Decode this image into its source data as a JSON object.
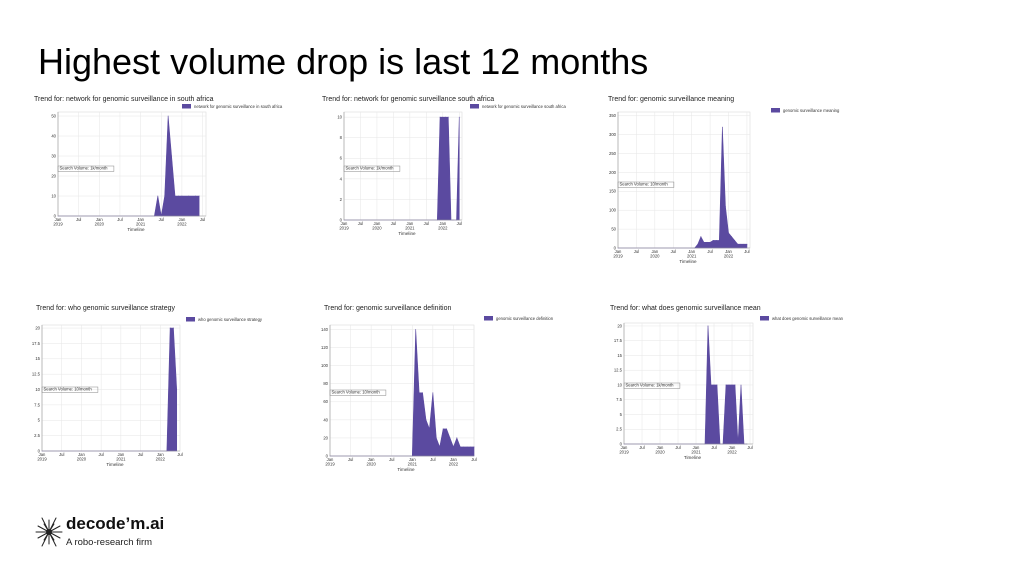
{
  "slide": {
    "title": "Highest volume drop is last 12 months"
  },
  "logo": {
    "name": "decode’m.ai",
    "tagline": "A robo-research firm"
  },
  "colors": {
    "area": "#5b4aa0",
    "grid": "#e6e6e6",
    "axis": "#999999"
  },
  "chart_data": [
    {
      "type": "area",
      "title": "Trend for: network for genomic surveillance in south africa",
      "legend": "network for genomic surveillance in south africa",
      "annotation": "Search Volume: 1k/month",
      "xlabel": "Timeline",
      "x_ticks": [
        {
          "t": 0,
          "label": "Jan\n2019"
        },
        {
          "t": 6,
          "label": "Jul"
        },
        {
          "t": 12,
          "label": "Jan\n2020"
        },
        {
          "t": 18,
          "label": "Jul"
        },
        {
          "t": 24,
          "label": "Jan\n2021"
        },
        {
          "t": 30,
          "label": "Jul"
        },
        {
          "t": 36,
          "label": "Jan\n2022"
        },
        {
          "t": 42,
          "label": "Jul"
        }
      ],
      "y_ticks": [
        0,
        10,
        20,
        30,
        40,
        50
      ],
      "ylim": [
        0,
        52
      ],
      "xlim": [
        0,
        43
      ],
      "x": [
        0,
        28,
        29,
        30,
        31,
        32,
        33,
        34,
        35,
        36,
        38,
        40,
        41
      ],
      "values": [
        0,
        0,
        10,
        0,
        10,
        50,
        30,
        10,
        10,
        10,
        10,
        10,
        10
      ]
    },
    {
      "type": "area",
      "title": "Trend for: network for genomic surveillance south africa",
      "legend": "network for genomic surveillance south africa",
      "annotation": "Search Volume: 1k/month",
      "xlabel": "Timeline",
      "x_ticks": [
        {
          "t": 0,
          "label": "Jan\n2019"
        },
        {
          "t": 6,
          "label": "Jul"
        },
        {
          "t": 12,
          "label": "Jan\n2020"
        },
        {
          "t": 18,
          "label": "Jul"
        },
        {
          "t": 24,
          "label": "Jan\n2021"
        },
        {
          "t": 30,
          "label": "Jul"
        },
        {
          "t": 36,
          "label": "Jan\n2022"
        },
        {
          "t": 42,
          "label": "Jul"
        }
      ],
      "y_ticks": [
        0,
        2,
        4,
        6,
        8,
        10
      ],
      "ylim": [
        0,
        10.5
      ],
      "xlim": [
        0,
        43
      ],
      "x": [
        0,
        34,
        35,
        36,
        37,
        38,
        39,
        39.5,
        40,
        41,
        42
      ],
      "values": [
        0,
        0,
        10,
        10,
        10,
        10,
        0,
        0,
        0,
        0,
        10
      ]
    },
    {
      "type": "area",
      "title": "Trend for: genomic surveillance meaning",
      "legend": "genomic surveillance meaning",
      "annotation": "Search Volume: 10/month",
      "xlabel": "Timeline",
      "x_ticks": [
        {
          "t": 0,
          "label": "Jan\n2019"
        },
        {
          "t": 6,
          "label": "Jul"
        },
        {
          "t": 12,
          "label": "Jan\n2020"
        },
        {
          "t": 18,
          "label": "Jul"
        },
        {
          "t": 24,
          "label": "Jan\n2021"
        },
        {
          "t": 30,
          "label": "Jul"
        },
        {
          "t": 36,
          "label": "Jan\n2022"
        },
        {
          "t": 42,
          "label": "Jul"
        }
      ],
      "y_ticks": [
        0,
        50,
        100,
        150,
        200,
        250,
        300,
        350
      ],
      "ylim": [
        0,
        360
      ],
      "xlim": [
        0,
        43
      ],
      "x": [
        0,
        25,
        26,
        27,
        28,
        29,
        30,
        31,
        32,
        33,
        34,
        35,
        36,
        37,
        38,
        39,
        40,
        41,
        42
      ],
      "values": [
        0,
        0,
        10,
        30,
        15,
        15,
        15,
        20,
        20,
        20,
        320,
        110,
        40,
        30,
        20,
        10,
        10,
        10,
        10
      ]
    },
    {
      "type": "area",
      "title": "Trend for: who genomic surveillance strategy",
      "legend": "who genomic surveillance strategy",
      "annotation": "Search Volume: 10/month",
      "xlabel": "Timeline",
      "x_ticks": [
        {
          "t": 0,
          "label": "Jan\n2019"
        },
        {
          "t": 6,
          "label": "Jul"
        },
        {
          "t": 12,
          "label": "Jan\n2020"
        },
        {
          "t": 18,
          "label": "Jul"
        },
        {
          "t": 24,
          "label": "Jan\n2021"
        },
        {
          "t": 30,
          "label": "Jul"
        },
        {
          "t": 36,
          "label": "Jan\n2022"
        },
        {
          "t": 42,
          "label": "Jul"
        }
      ],
      "y_ticks": [
        0,
        2.5,
        5.0,
        7.5,
        10.0,
        12.5,
        15.0,
        17.5,
        20.0
      ],
      "ylim": [
        0,
        20.5
      ],
      "xlim": [
        0,
        42
      ],
      "x": [
        0,
        38,
        39,
        40,
        41
      ],
      "values": [
        0,
        0,
        20,
        20,
        10
      ]
    },
    {
      "type": "area",
      "title": "Trend for: genomic surveillance definition",
      "legend": "genomic surveillance definition",
      "annotation": "Search Volume: 10/month",
      "xlabel": "Timeline",
      "x_ticks": [
        {
          "t": 0,
          "label": "Jan\n2019"
        },
        {
          "t": 6,
          "label": "Jul"
        },
        {
          "t": 12,
          "label": "Jan\n2020"
        },
        {
          "t": 18,
          "label": "Jul"
        },
        {
          "t": 24,
          "label": "Jan\n2021"
        },
        {
          "t": 30,
          "label": "Jul"
        },
        {
          "t": 36,
          "label": "Jan\n2022"
        },
        {
          "t": 42,
          "label": "Jul"
        }
      ],
      "y_ticks": [
        0,
        20,
        40,
        60,
        80,
        100,
        120,
        140
      ],
      "ylim": [
        0,
        145
      ],
      "xlim": [
        0,
        42
      ],
      "x": [
        0,
        24,
        25,
        26,
        27,
        28,
        29,
        30,
        31,
        32,
        33,
        34,
        35,
        36,
        37,
        38,
        39,
        40,
        41,
        42
      ],
      "values": [
        0,
        0,
        140,
        70,
        70,
        40,
        30,
        70,
        20,
        10,
        30,
        30,
        20,
        10,
        20,
        10,
        10,
        10,
        10,
        10
      ]
    },
    {
      "type": "area",
      "title": "Trend for: what does genomic surveillance mean",
      "legend": "what does genomic surveillance mean",
      "annotation": "Search Volume: 1k/month",
      "xlabel": "Timeline",
      "x_ticks": [
        {
          "t": 0,
          "label": "Jan\n2019"
        },
        {
          "t": 6,
          "label": "Jul"
        },
        {
          "t": 12,
          "label": "Jan\n2020"
        },
        {
          "t": 18,
          "label": "Jul"
        },
        {
          "t": 24,
          "label": "Jan\n2021"
        },
        {
          "t": 30,
          "label": "Jul"
        },
        {
          "t": 36,
          "label": "Jan\n2022"
        },
        {
          "t": 42,
          "label": "Jul"
        }
      ],
      "y_ticks": [
        0.0,
        2.5,
        5.0,
        7.5,
        10.0,
        12.5,
        15.0,
        17.5,
        20.0
      ],
      "ylim": [
        0,
        20.5
      ],
      "xlim": [
        0,
        43
      ],
      "x": [
        0,
        27,
        28,
        29,
        30,
        31,
        32,
        33,
        34,
        35,
        36,
        37,
        38,
        39,
        40,
        41
      ],
      "values": [
        0,
        0,
        20,
        10,
        10,
        10,
        0,
        0,
        10,
        10,
        10,
        10,
        0,
        10,
        0,
        0
      ]
    }
  ]
}
